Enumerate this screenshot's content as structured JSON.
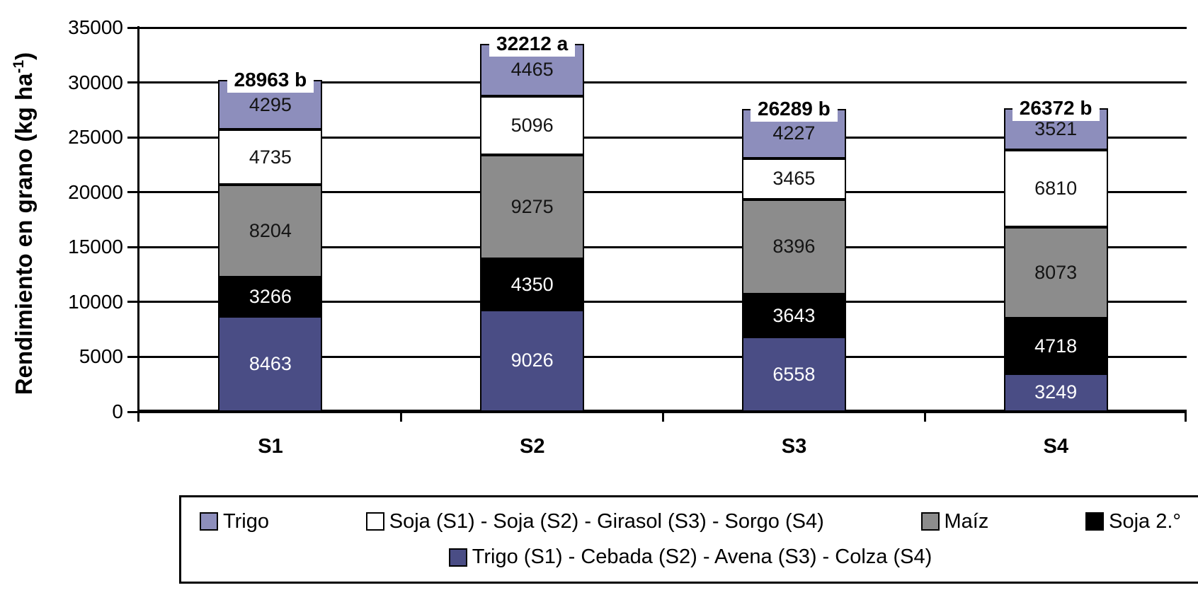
{
  "chart_data": {
    "type": "bar",
    "stacked": true,
    "grid": true,
    "legend_position": "bottom",
    "categories": [
      "S1",
      "S2",
      "S3",
      "S4"
    ],
    "series": [
      {
        "name": "Trigo (S1) - Cebada (S2) - Avena (S3) - Colza (S4)",
        "color": "#4A4D85",
        "label_color": "#FFFFFF",
        "values": [
          8463,
          9026,
          6558,
          3249
        ]
      },
      {
        "name": "Soja 2.°",
        "color": "#000000",
        "label_color": "#FFFFFF",
        "values": [
          3266,
          4350,
          3643,
          4718
        ]
      },
      {
        "name": "Maíz",
        "color": "#8C8C8C",
        "label_color": "#141414",
        "values": [
          8204,
          9275,
          8396,
          8073
        ]
      },
      {
        "name": "Soja (S1) - Soja (S2) - Girasol (S3) - Sorgo (S4)",
        "color": "#FFFFFF",
        "label_color": "#141414",
        "values": [
          4735,
          5096,
          3465,
          6810
        ]
      },
      {
        "name": "Trigo",
        "color": "#8D8EBC",
        "label_color": "#141414",
        "values": [
          4295,
          4465,
          4227,
          3521
        ]
      }
    ],
    "totals": [
      {
        "value": 28963,
        "group": "b"
      },
      {
        "value": 32212,
        "group": "a"
      },
      {
        "value": 26289,
        "group": "b"
      },
      {
        "value": 26372,
        "group": "b"
      }
    ],
    "y_axis": {
      "title_prefix": "Rendimiento en grano (kg ha",
      "title_sup": "-1",
      "title_suffix": ")",
      "min": 0,
      "max": 35000,
      "tick_step": 5000,
      "tick_labels": [
        "0",
        "5000",
        "10000",
        "15000",
        "20000",
        "25000",
        "30000",
        "35000"
      ]
    },
    "legend": {
      "rows": [
        [
          {
            "label": "Trigo",
            "color": "#8D8EBC"
          },
          {
            "label": "Soja (S1) - Soja (S2) - Girasol (S3) - Sorgo (S4)",
            "color": "#FFFFFF"
          },
          {
            "label": "Maíz",
            "color": "#8C8C8C"
          },
          {
            "label": "Soja 2.°",
            "color": "#000000"
          }
        ],
        [
          {
            "label": "Trigo (S1) - Cebada (S2) - Avena (S3) - Colza (S4)",
            "color": "#4A4D85"
          }
        ]
      ]
    },
    "colors": {
      "axis": "#000000",
      "background": "#FFFFFF"
    }
  }
}
